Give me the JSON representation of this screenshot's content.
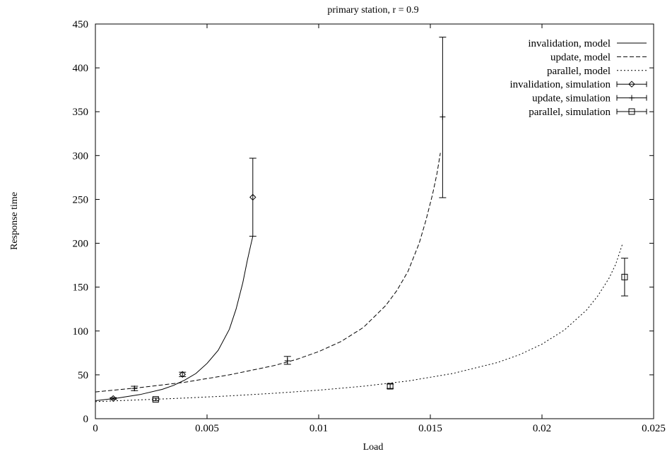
{
  "chart_data": {
    "type": "line",
    "title": "primary station, r = 0.9",
    "xlabel": "Load",
    "ylabel": "Response time",
    "xlim": [
      0,
      0.025
    ],
    "ylim": [
      0,
      450
    ],
    "xticks": [
      0,
      0.005,
      0.01,
      0.015,
      0.02,
      0.025
    ],
    "xtick_labels": [
      "0",
      "0.005",
      "0.01",
      "0.015",
      "0.02",
      "0.025"
    ],
    "yticks": [
      0,
      50,
      100,
      150,
      200,
      250,
      300,
      350,
      400,
      450
    ],
    "ytick_labels": [
      "0",
      "50",
      "100",
      "150",
      "200",
      "250",
      "300",
      "350",
      "400",
      "450"
    ],
    "grid": false,
    "legend_position": "top-right",
    "series": [
      {
        "name": "invalidation, model",
        "kind": "model",
        "dash": "solid",
        "x": [
          0.0,
          0.001,
          0.002,
          0.003,
          0.0035,
          0.004,
          0.0045,
          0.005,
          0.0055,
          0.006,
          0.0063,
          0.0066,
          0.0068,
          0.00695,
          0.00705
        ],
        "y": [
          20.5,
          23.5,
          27.5,
          33.5,
          38,
          44,
          51.5,
          63,
          78,
          102,
          125,
          155,
          180,
          197,
          208
        ]
      },
      {
        "name": "update, model",
        "kind": "model",
        "dash": "dashed",
        "x": [
          0.0,
          0.002,
          0.004,
          0.006,
          0.008,
          0.009,
          0.01,
          0.011,
          0.012,
          0.013,
          0.0135,
          0.014,
          0.0145,
          0.0148,
          0.0151,
          0.0153,
          0.01545
        ],
        "y": [
          30.5,
          35.5,
          41.5,
          50,
          60.5,
          67.5,
          76.5,
          88,
          104,
          129,
          146,
          168,
          200,
          226,
          256,
          280,
          303
        ]
      },
      {
        "name": "parallel, model",
        "kind": "model",
        "dash": "dotted",
        "x": [
          0.0,
          0.002,
          0.004,
          0.006,
          0.008,
          0.01,
          0.012,
          0.014,
          0.016,
          0.018,
          0.019,
          0.02,
          0.021,
          0.022,
          0.0225,
          0.023,
          0.0233,
          0.0236
        ],
        "y": [
          19.5,
          21.5,
          23.5,
          26,
          29,
          32.5,
          37,
          43,
          51.5,
          64,
          73,
          85,
          101,
          124,
          140,
          160,
          176,
          199
        ]
      },
      {
        "name": "invalidation, simulation",
        "kind": "simulation",
        "marker": "diamond",
        "points": [
          {
            "x": 0.0008,
            "y": 23,
            "ylow": 22,
            "yhigh": 24
          },
          {
            "x": 0.0039,
            "y": 50.5,
            "ylow": 48,
            "yhigh": 53
          },
          {
            "x": 0.00705,
            "y": 252.5,
            "ylow": 208,
            "yhigh": 297
          }
        ]
      },
      {
        "name": "update, simulation",
        "kind": "simulation",
        "marker": "plus",
        "points": [
          {
            "x": 0.00175,
            "y": 34.5,
            "ylow": 32,
            "yhigh": 37
          },
          {
            "x": 0.0086,
            "y": 66,
            "ylow": 62,
            "yhigh": 71
          },
          {
            "x": 0.01555,
            "y": 344,
            "ylow": 252,
            "yhigh": 435
          }
        ]
      },
      {
        "name": "parallel, simulation",
        "kind": "simulation",
        "marker": "square",
        "points": [
          {
            "x": 0.0027,
            "y": 22,
            "ylow": 20.5,
            "yhigh": 23.5
          },
          {
            "x": 0.0132,
            "y": 37,
            "ylow": 34.5,
            "yhigh": 39.5
          },
          {
            "x": 0.0237,
            "y": 161.5,
            "ylow": 140,
            "yhigh": 183
          }
        ]
      }
    ]
  }
}
